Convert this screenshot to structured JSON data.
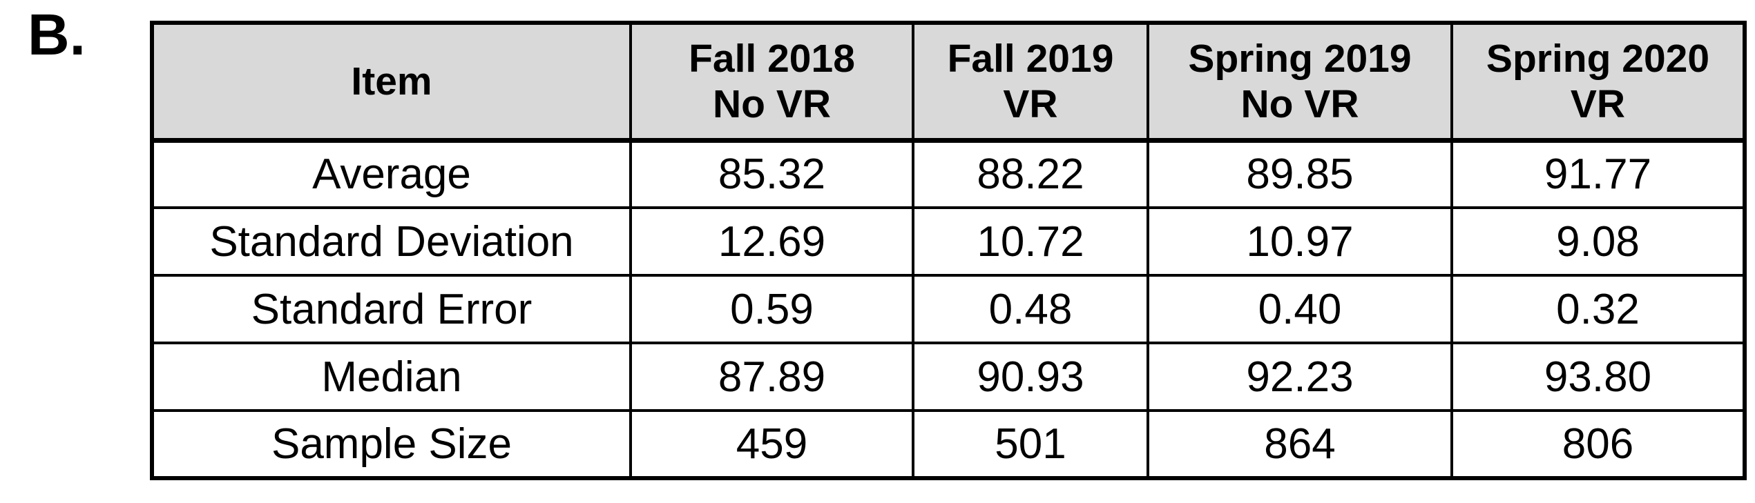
{
  "panel_label": "B.",
  "colors": {
    "header_bg": "#d9d9d9",
    "border": "#000000",
    "background": "#ffffff",
    "text": "#000000"
  },
  "table": {
    "header": {
      "item": "Item",
      "columns": [
        {
          "line1": "Fall 2018",
          "line2": "No VR"
        },
        {
          "line1": "Fall 2019",
          "line2": "VR"
        },
        {
          "line1": "Spring 2019",
          "line2": "No VR"
        },
        {
          "line1": "Spring 2020",
          "line2": "VR"
        }
      ]
    },
    "rows": [
      {
        "label": "Average",
        "values": [
          "85.32",
          "88.22",
          "89.85",
          "91.77"
        ]
      },
      {
        "label": "Standard Deviation",
        "values": [
          "12.69",
          "10.72",
          "10.97",
          "9.08"
        ]
      },
      {
        "label": "Standard Error",
        "values": [
          "0.59",
          "0.48",
          "0.40",
          "0.32"
        ]
      },
      {
        "label": "Median",
        "values": [
          "87.89",
          "90.93",
          "92.23",
          "93.80"
        ]
      },
      {
        "label": "Sample Size",
        "values": [
          "459",
          "501",
          "864",
          "806"
        ]
      }
    ]
  },
  "chart_data": {
    "type": "table",
    "title": "Panel B statistics table",
    "columns": [
      "Item",
      "Fall 2018 No VR",
      "Fall 2019 VR",
      "Spring 2019 No VR",
      "Spring 2020 VR"
    ],
    "rows": [
      [
        "Average",
        85.32,
        88.22,
        89.85,
        91.77
      ],
      [
        "Standard Deviation",
        12.69,
        10.72,
        10.97,
        9.08
      ],
      [
        "Standard Error",
        0.59,
        0.48,
        0.4,
        0.32
      ],
      [
        "Median",
        87.89,
        90.93,
        92.23,
        93.8
      ],
      [
        "Sample Size",
        459,
        501,
        864,
        806
      ]
    ]
  }
}
